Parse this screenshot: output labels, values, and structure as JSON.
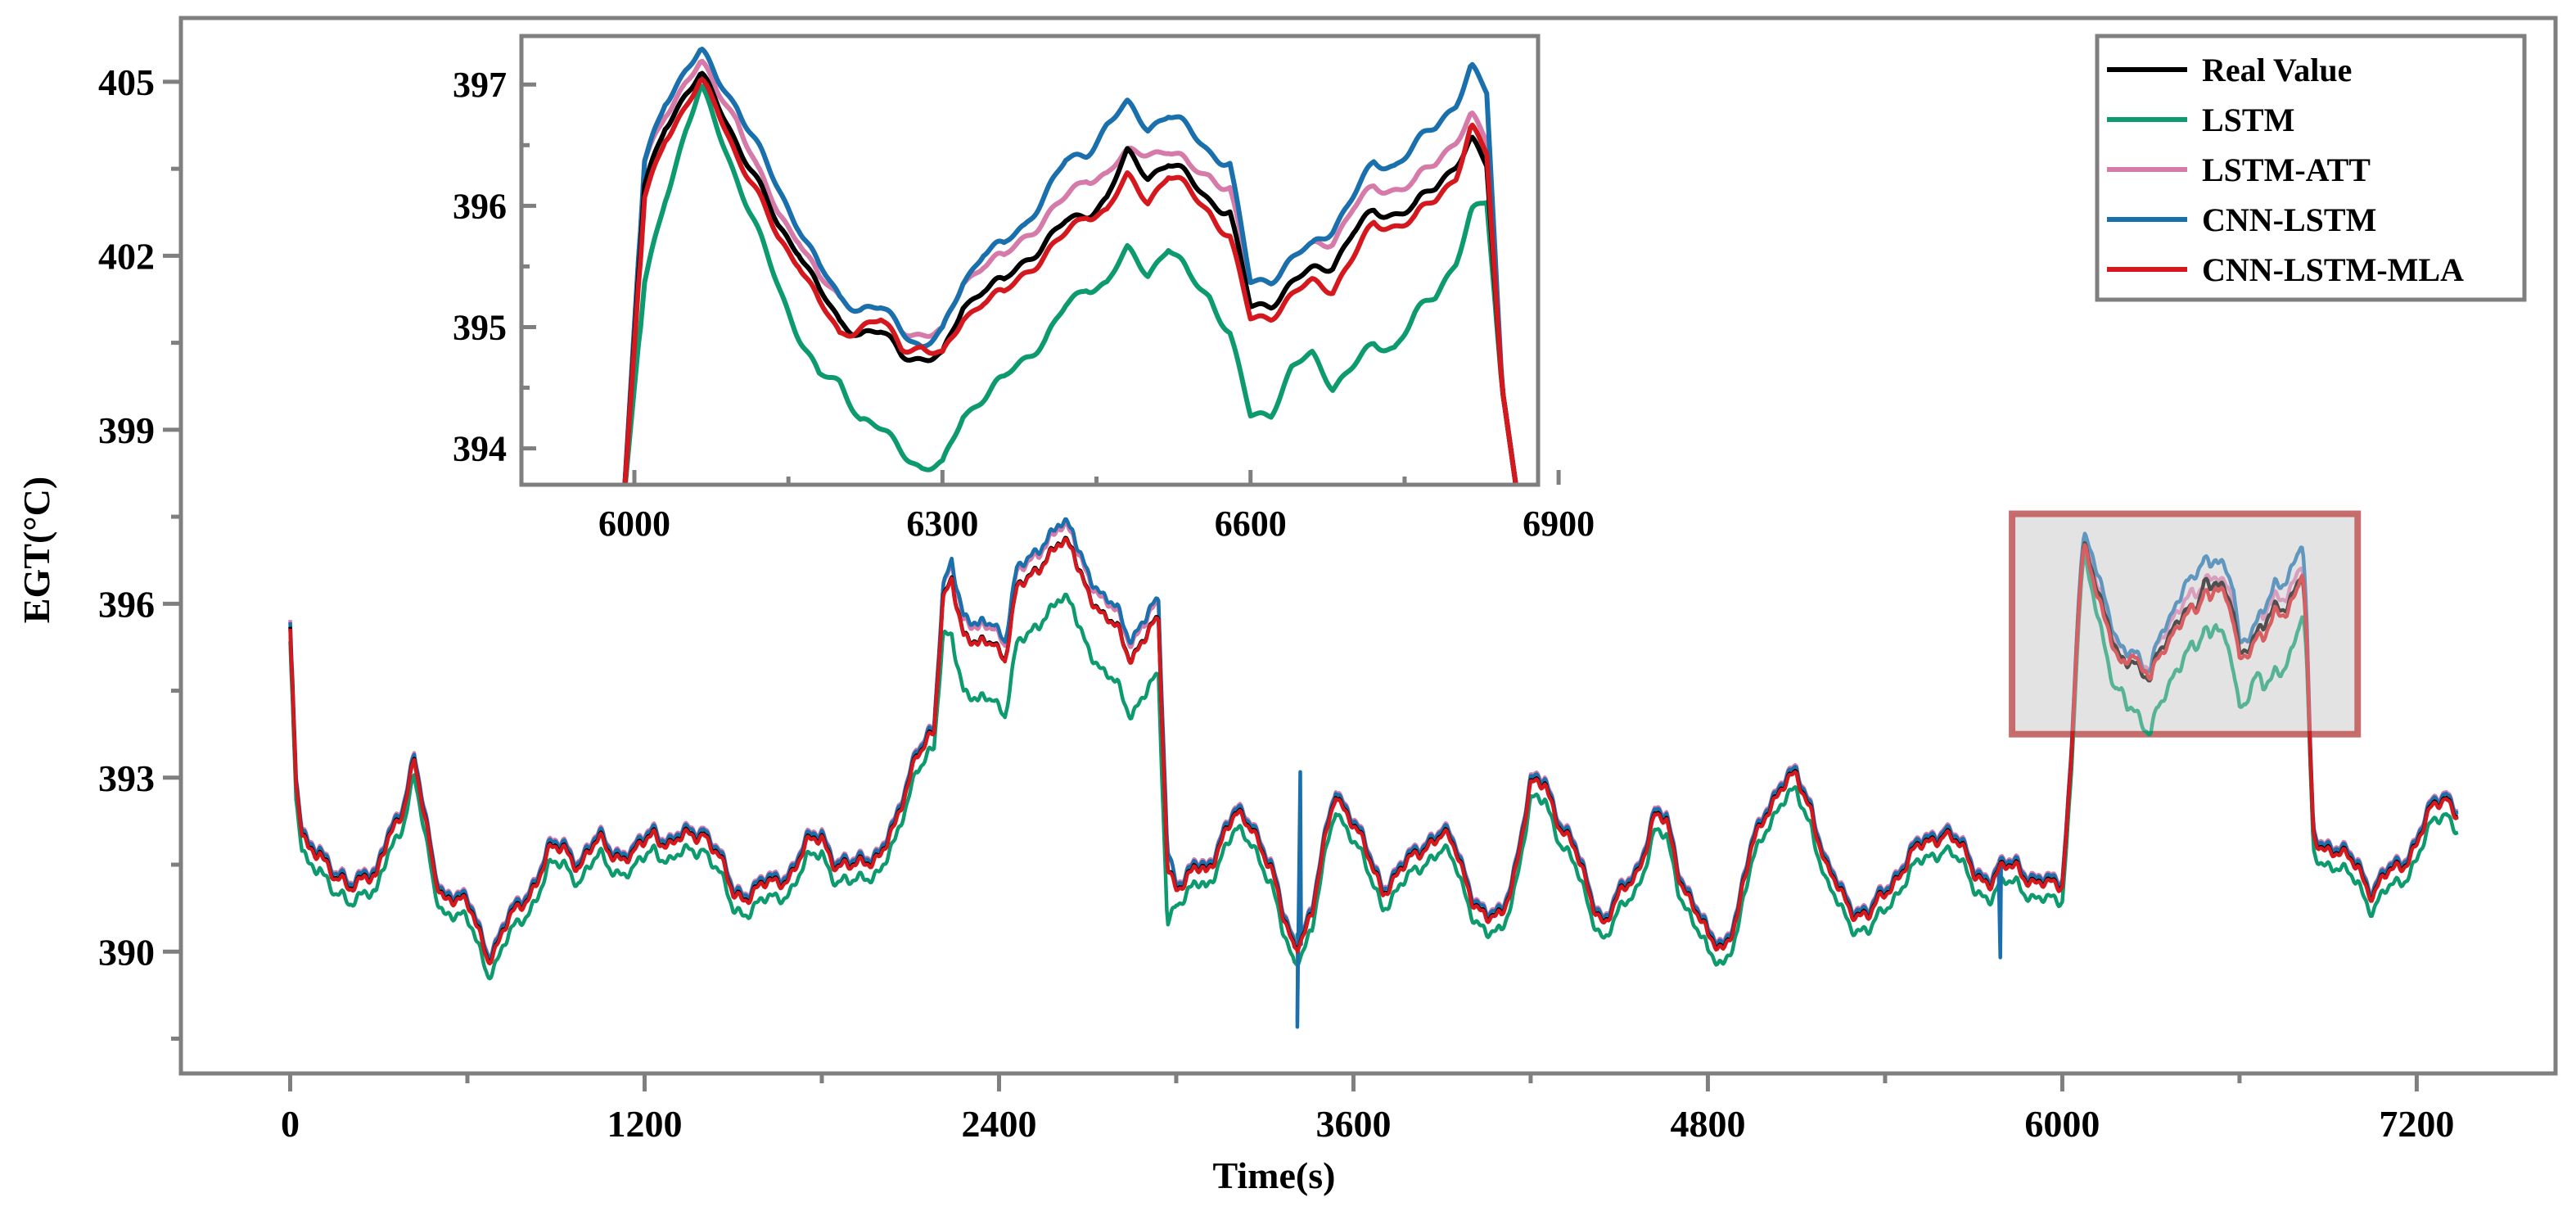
{
  "chart_data": [
    {
      "id": "main",
      "type": "line",
      "xlabel": "Time(s)",
      "ylabel": "EGT(°C)",
      "xlim": [
        -370,
        7670
      ],
      "ylim": [
        387.9,
        406.1
      ],
      "xticks": [
        0,
        1200,
        2400,
        3600,
        4800,
        6000,
        7200
      ],
      "xtick_labels": [
        "0",
        "1200",
        "2400",
        "3600",
        "4800",
        "6000",
        "7200"
      ],
      "yticks": [
        390,
        393,
        396,
        399,
        402,
        405
      ],
      "ytick_labels": [
        "390",
        "393",
        "396",
        "399",
        "402",
        "405"
      ],
      "grid": false,
      "legend_position": "top-right",
      "legend": [
        "Real Value",
        "LSTM",
        "LSTM-ATT",
        "CNN-LSTM",
        "CNN-LSTM-MLA"
      ],
      "series": [
        {
          "name": "Real Value",
          "color": "#000000"
        },
        {
          "name": "LSTM",
          "color": "#0c9a6e"
        },
        {
          "name": "LSTM-ATT",
          "color": "#d57aa9"
        },
        {
          "name": "CNN-LSTM",
          "color": "#1a6fad"
        },
        {
          "name": "CNN-LSTM-MLA",
          "color": "#d4181e"
        }
      ],
      "base_curve": {
        "x": [
          0,
          20,
          40,
          60,
          100,
          150,
          200,
          250,
          290,
          330,
          380,
          420,
          460,
          490,
          520,
          570,
          620,
          670,
          700,
          740,
          780,
          830,
          880,
          930,
          980,
          1050,
          1100,
          1160,
          1230,
          1290,
          1350,
          1400,
          1450,
          1500,
          1550,
          1600,
          1650,
          1700,
          1750,
          1800,
          1850,
          1900,
          1950,
          2000,
          2050,
          2080,
          2120,
          2180,
          2210,
          2240,
          2280,
          2330,
          2380,
          2420,
          2460,
          2500,
          2550,
          2600,
          2650,
          2700,
          2750,
          2800,
          2850,
          2900,
          2940,
          2970,
          3000,
          3030,
          3060,
          3100,
          3160,
          3200,
          3260,
          3320,
          3360,
          3400,
          3430,
          3460,
          3490,
          3540,
          3590,
          3650,
          3700,
          3750,
          3800,
          3850,
          3900,
          3950,
          4000,
          4050,
          4100,
          4150,
          4200,
          4250,
          4300,
          4350,
          4400,
          4450,
          4500,
          4560,
          4620,
          4660,
          4700,
          4750,
          4800,
          4850,
          4900,
          4950,
          5000,
          5050,
          5100,
          5150,
          5200,
          5250,
          5300,
          5350,
          5400,
          5450,
          5500,
          5550,
          5600,
          5650,
          5700,
          5760,
          5800,
          5850,
          5900,
          5950,
          6000,
          6050,
          6075,
          6100,
          6150,
          6200,
          6250,
          6300,
          6350,
          6400,
          6450,
          6500,
          6550,
          6600,
          6650,
          6700,
          6750,
          6800,
          6830,
          6850,
          6900,
          6950,
          7000,
          7050,
          7100,
          7150,
          7200,
          7250,
          7300,
          7340
        ],
        "y": [
          395.6,
          392.8,
          392.0,
          391.8,
          391.8,
          391.2,
          391.1,
          391.4,
          391.2,
          391.9,
          392.5,
          393.3,
          392.1,
          391.3,
          391.0,
          390.9,
          390.6,
          389.95,
          390.1,
          390.5,
          390.8,
          391.2,
          391.7,
          391.8,
          391.5,
          391.9,
          391.7,
          391.6,
          392.1,
          391.8,
          392.0,
          392.1,
          391.6,
          391.0,
          391.0,
          391.1,
          391.2,
          391.4,
          391.8,
          392.0,
          391.5,
          391.4,
          391.6,
          391.7,
          392.1,
          392.7,
          393.5,
          393.7,
          396.0,
          396.5,
          395.5,
          395.2,
          395.4,
          395.1,
          396.2,
          396.4,
          396.8,
          397.0,
          396.9,
          396.3,
          395.7,
          395.6,
          395.1,
          395.4,
          395.7,
          391.5,
          391.2,
          391.1,
          391.4,
          391.4,
          392.0,
          392.3,
          392.2,
          391.4,
          390.6,
          390.1,
          390.4,
          390.6,
          391.5,
          392.8,
          392.3,
          391.6,
          391.1,
          391.3,
          391.6,
          391.9,
          392.0,
          391.7,
          391.0,
          390.5,
          390.6,
          391.5,
          392.8,
          392.9,
          392.2,
          391.7,
          391.0,
          390.5,
          390.9,
          391.4,
          392.3,
          392.2,
          391.4,
          390.8,
          390.2,
          390.1,
          390.6,
          391.8,
          392.5,
          392.8,
          393.0,
          392.5,
          391.4,
          391.0,
          390.7,
          390.6,
          391.0,
          391.4,
          391.7,
          391.9,
          392.1,
          391.8,
          391.4,
          391.2,
          391.4,
          391.5,
          391.2,
          391.1,
          391.2,
          394.7,
          396.9,
          396.7,
          396.0,
          395.2,
          394.9,
          395.0,
          395.7,
          396.2,
          396.4,
          396.2,
          395.2,
          395.5,
          395.8,
          396.0,
          396.2,
          396.7,
          393.5,
          392.0,
          391.8,
          391.6,
          391.5,
          391.0,
          391.3,
          391.5,
          391.9,
          392.4,
          392.7,
          392.4
        ],
        "offsets": {
          "Real Value": 0.0,
          "LSTM": -0.25,
          "LSTM-ATT": 0.12,
          "CNN-LSTM": 0.08,
          "CNN-LSTM-MLA": -0.03
        },
        "peak_segment_offsets": {
          "x_range": [
            2180,
            3000
          ],
          "LSTM": -0.7,
          "CNN-LSTM": 0.25,
          "LSTM-ATT": 0.15
        },
        "spikes": [
          {
            "x": 3410,
            "CNN-LSTM": 388.7,
            "LSTM-ATT": 388.8,
            "CNN-LSTM-MLA": 390.0,
            "LSTM": 390.3
          },
          {
            "x": 5790,
            "CNN-LSTM": 389.9
          },
          {
            "x": 3420,
            "CNN-LSTM": 393.1
          }
        ]
      },
      "highlight_box": {
        "x_range": [
          5830,
          7000
        ],
        "y_range": [
          393.75,
          397.55
        ],
        "fill": "#e3e3e3",
        "stroke": "#c25d5d"
      }
    },
    {
      "id": "inset",
      "type": "line",
      "xlim": [
        5890,
        6880
      ],
      "ylim": [
        393.7,
        397.4
      ],
      "xticks": [
        6000,
        6300,
        6600,
        6900
      ],
      "xtick_labels": [
        "6000",
        "6300",
        "6600",
        "6900"
      ],
      "yticks": [
        394,
        395,
        396,
        397
      ],
      "ytick_labels": [
        "394",
        "395",
        "396",
        "397"
      ],
      "grid": false,
      "series_x": [
        5990,
        6010,
        6030,
        6050,
        6065,
        6080,
        6100,
        6120,
        6140,
        6160,
        6180,
        6200,
        6220,
        6240,
        6260,
        6280,
        6300,
        6320,
        6340,
        6360,
        6380,
        6400,
        6420,
        6440,
        6460,
        6480,
        6500,
        6520,
        6540,
        6560,
        6580,
        6600,
        6620,
        6640,
        6660,
        6680,
        6700,
        6720,
        6740,
        6760,
        6780,
        6800,
        6815,
        6830,
        6845,
        6860
      ],
      "series": [
        {
          "name": "Real Value",
          "color": "#000000",
          "values": [
            393.6,
            396.2,
            396.7,
            396.9,
            397.0,
            396.8,
            396.5,
            396.2,
            395.9,
            395.7,
            395.3,
            395.0,
            394.9,
            394.9,
            394.8,
            394.8,
            394.8,
            395.2,
            395.3,
            395.3,
            395.5,
            395.7,
            395.9,
            396.0,
            396.1,
            396.4,
            396.2,
            396.3,
            396.2,
            396.1,
            396.0,
            395.2,
            395.2,
            395.3,
            395.4,
            395.5,
            395.8,
            396.0,
            396.0,
            396.0,
            396.1,
            396.3,
            396.5,
            396.3,
            394.5,
            393.6
          ]
        },
        {
          "name": "LSTM",
          "color": "#0c9a6e",
          "values": [
            393.6,
            395.4,
            396.1,
            396.6,
            396.9,
            396.6,
            396.2,
            395.8,
            395.4,
            395.0,
            394.6,
            394.5,
            394.2,
            394.1,
            394.0,
            393.9,
            393.9,
            394.3,
            394.4,
            394.5,
            394.7,
            394.9,
            395.2,
            395.4,
            395.4,
            395.6,
            395.4,
            395.6,
            395.4,
            395.3,
            395.0,
            394.3,
            394.3,
            394.6,
            394.7,
            394.5,
            394.7,
            394.9,
            394.9,
            395.1,
            395.2,
            395.5,
            395.9,
            396.0,
            394.5,
            393.6
          ]
        },
        {
          "name": "LSTM-ATT",
          "color": "#d57aa9",
          "values": [
            393.6,
            396.4,
            396.8,
            397.0,
            397.1,
            396.9,
            396.7,
            396.3,
            396.0,
            395.8,
            395.4,
            395.2,
            395.1,
            395.1,
            395.0,
            395.0,
            395.0,
            395.4,
            395.5,
            395.5,
            395.7,
            395.9,
            396.1,
            396.3,
            396.3,
            396.4,
            396.4,
            396.4,
            396.3,
            396.3,
            396.2,
            395.4,
            395.4,
            395.5,
            395.6,
            395.7,
            396.0,
            396.2,
            396.2,
            396.2,
            396.3,
            396.5,
            396.7,
            396.5,
            394.5,
            393.6
          ]
        },
        {
          "name": "CNN-LSTM",
          "color": "#1a6fad",
          "values": [
            393.6,
            396.4,
            396.9,
            397.1,
            397.2,
            397.0,
            396.8,
            396.5,
            396.2,
            395.9,
            395.5,
            395.2,
            395.1,
            395.1,
            395.0,
            394.9,
            395.0,
            395.4,
            395.6,
            395.6,
            395.8,
            396.1,
            396.4,
            396.5,
            396.7,
            396.8,
            396.6,
            396.7,
            396.6,
            396.5,
            396.4,
            395.4,
            395.4,
            395.5,
            395.6,
            395.8,
            396.1,
            396.4,
            396.4,
            396.5,
            396.6,
            396.8,
            397.1,
            396.9,
            394.5,
            393.6
          ]
        },
        {
          "name": "CNN-LSTM-MLA",
          "color": "#d4181e",
          "values": [
            393.6,
            396.1,
            396.6,
            396.8,
            396.95,
            396.75,
            396.4,
            396.1,
            395.8,
            395.6,
            395.2,
            394.9,
            394.95,
            395.0,
            394.85,
            394.9,
            394.8,
            395.1,
            395.2,
            395.2,
            395.4,
            395.6,
            395.8,
            396.0,
            396.0,
            396.2,
            396.0,
            396.2,
            396.1,
            396.0,
            395.8,
            395.1,
            395.1,
            395.2,
            395.3,
            395.3,
            395.6,
            395.9,
            395.9,
            395.9,
            396.0,
            396.2,
            396.6,
            396.4,
            394.5,
            393.6
          ]
        }
      ]
    }
  ]
}
